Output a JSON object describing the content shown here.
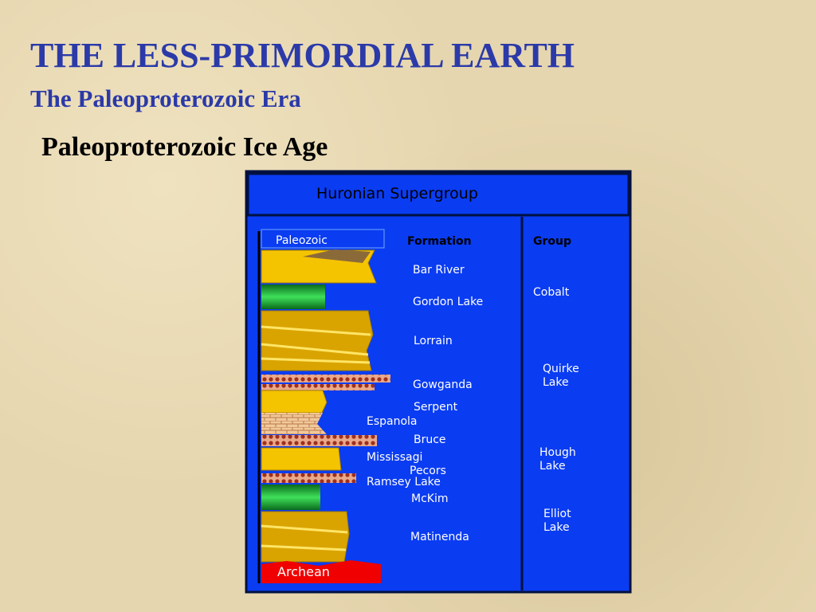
{
  "header": {
    "title": "THE LESS-PRIMORDIAL EARTH",
    "subtitle": "The Paleoproterozoic Era",
    "heading": "Paleoproterozoic Ice Age"
  },
  "diagram": {
    "title": "Huronian Supergroup",
    "top_label": "Paleozoic",
    "bottom_label": "Archean",
    "formation_header": "Formation",
    "group_header": "Group",
    "formations": [
      "Bar River",
      "Gordon Lake",
      "Lorrain",
      "Gowganda",
      "Serpent",
      "Espanola",
      "Bruce",
      "Mississagi",
      "Pecors",
      "Ramsey Lake",
      "McKim",
      "Matinenda"
    ],
    "groups": [
      [
        "Cobalt"
      ],
      [
        "Quirke",
        "Lake"
      ],
      [
        "Hough",
        "Lake"
      ],
      [
        "Elliot",
        "Lake"
      ]
    ]
  }
}
